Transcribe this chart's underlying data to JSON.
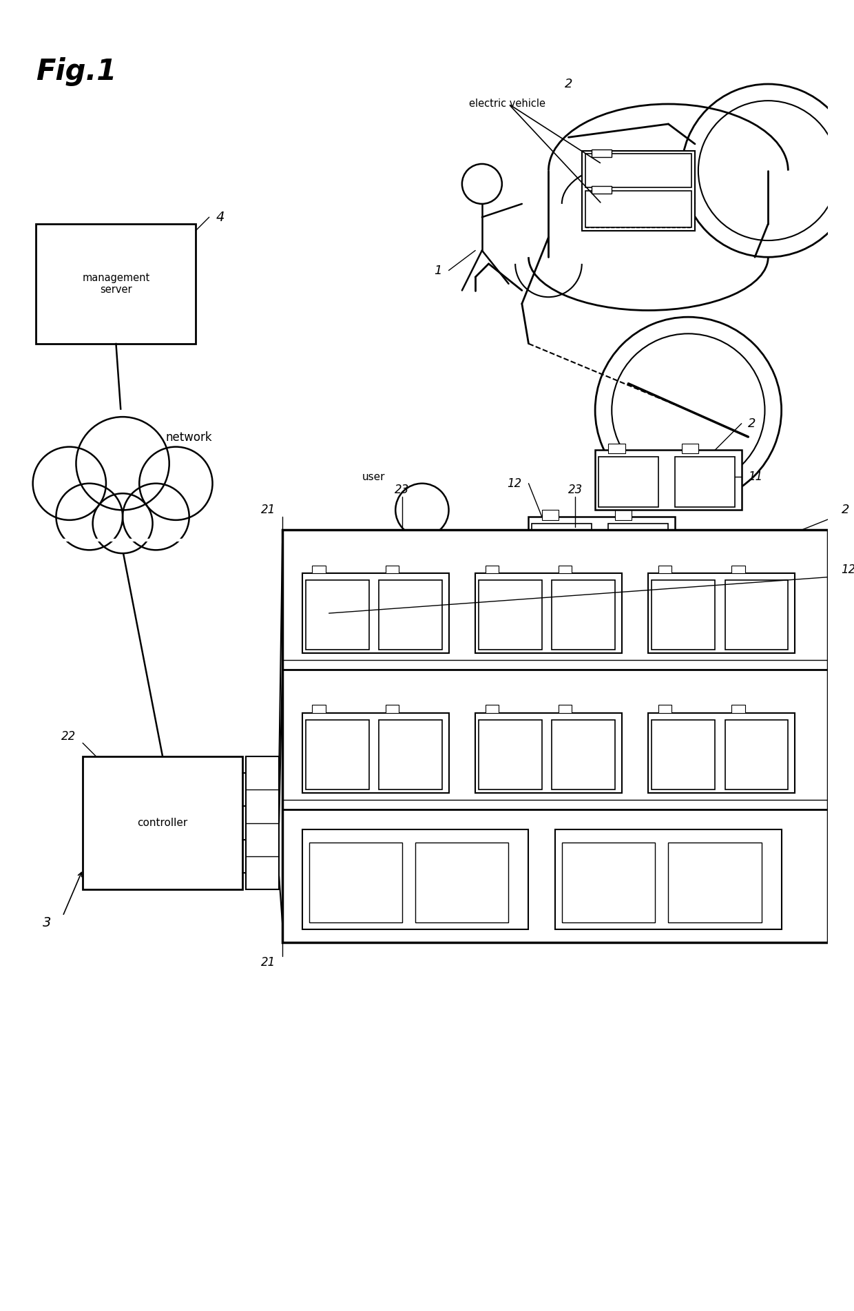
{
  "bg_color": "#ffffff",
  "line_color": "#000000",
  "fig_width": 12.4,
  "fig_height": 19.03,
  "labels": {
    "fig_title": "Fig.1",
    "electric_vehicle": "electric vehicle",
    "network": "network",
    "management_server": "management\nserver",
    "controller": "controller",
    "user": "user",
    "ref_1": "1",
    "ref_2_top": "2",
    "ref_2_mid": "2",
    "ref_2_bot": "2",
    "ref_3": "3",
    "ref_4": "4",
    "ref_11": "11",
    "ref_12_top": "12",
    "ref_12_bot": "12",
    "ref_21_top": "21",
    "ref_21_bot": "21",
    "ref_22": "22",
    "ref_23_left": "23",
    "ref_23_right": "23"
  }
}
